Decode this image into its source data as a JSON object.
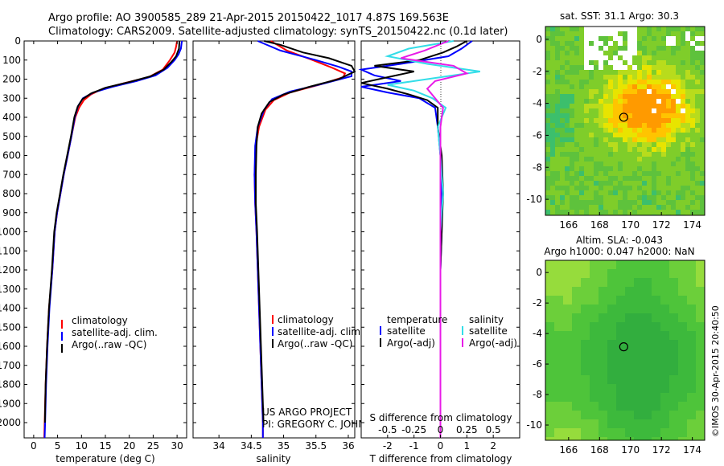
{
  "header": {
    "line1": "Argo profile: AO 3900585_289 21-Apr-2015 20150422_1017 4.87S 169.563E",
    "line2": "Climatology: CARS2009. Satellite-adjusted climatology: synTS_20150422.nc (0.1d later)"
  },
  "credits": {
    "project": "US ARGO PROJECT",
    "pi": "PI: GREGORY C. JOHNSON",
    "side_stamp": "©IMOS 30-Apr-2015 20:40:50"
  },
  "colors": {
    "climatology": "#ff0000",
    "satellite": "#0000ff",
    "argo": "#000000",
    "sal_satellite": "#33dde8",
    "sal_argo": "#e81be8"
  },
  "chart_data": [
    {
      "type": "line",
      "id": "temperature",
      "xlabel": "temperature (deg C)",
      "ylabel": "depth",
      "xlim": [
        -2,
        32
      ],
      "ylim": [
        2080,
        0
      ],
      "xticks": [
        0,
        5,
        10,
        15,
        20,
        25,
        30
      ],
      "yticks": [
        0,
        100,
        200,
        300,
        400,
        500,
        600,
        700,
        800,
        900,
        1000,
        1100,
        1200,
        1300,
        1400,
        1500,
        1600,
        1700,
        1800,
        1900,
        2000
      ],
      "legend": [
        "climatology",
        "satellite-adj. clim.",
        "Argo(..raw -QC)"
      ],
      "series": [
        {
          "name": "climatology",
          "color": "#ff0000",
          "points": [
            [
              30,
              0
            ],
            [
              29.8,
              30
            ],
            [
              29.5,
              60
            ],
            [
              28.5,
              100
            ],
            [
              27,
              150
            ],
            [
              24,
              190
            ],
            [
              19,
              220
            ],
            [
              14.5,
              250
            ],
            [
              12,
              280
            ],
            [
              10.5,
              310
            ],
            [
              9.5,
              350
            ],
            [
              8.7,
              400
            ],
            [
              7.9,
              500
            ],
            [
              7.1,
              600
            ],
            [
              6.3,
              700
            ],
            [
              5.6,
              800
            ],
            [
              4.9,
              900
            ],
            [
              4.4,
              1000
            ],
            [
              3.9,
              1200
            ],
            [
              3.2,
              1400
            ],
            [
              2.8,
              1600
            ],
            [
              2.5,
              1800
            ],
            [
              2.3,
              2000
            ],
            [
              2.2,
              2080
            ]
          ]
        },
        {
          "name": "satellite",
          "color": "#0000ff",
          "points": [
            [
              31,
              0
            ],
            [
              30.8,
              40
            ],
            [
              30.3,
              70
            ],
            [
              29.5,
              100
            ],
            [
              28,
              140
            ],
            [
              25.5,
              180
            ],
            [
              21.5,
              210
            ],
            [
              16.5,
              240
            ],
            [
              12.5,
              270
            ],
            [
              10.3,
              300
            ],
            [
              9.3,
              340
            ],
            [
              8.6,
              400
            ],
            [
              7.9,
              500
            ],
            [
              7.1,
              600
            ],
            [
              6.3,
              700
            ],
            [
              5.6,
              800
            ],
            [
              4.9,
              900
            ],
            [
              4.4,
              1000
            ],
            [
              3.9,
              1200
            ],
            [
              3.3,
              1400
            ],
            [
              2.9,
              1600
            ],
            [
              2.6,
              1800
            ],
            [
              2.4,
              2000
            ],
            [
              2.3,
              2080
            ]
          ]
        },
        {
          "name": "argo",
          "color": "#000000",
          "points": [
            [
              30.5,
              0
            ],
            [
              30.4,
              40
            ],
            [
              29.8,
              80
            ],
            [
              28.8,
              110
            ],
            [
              27.2,
              150
            ],
            [
              24.5,
              185
            ],
            [
              20,
              215
            ],
            [
              15,
              245
            ],
            [
              12,
              275
            ],
            [
              10.2,
              305
            ],
            [
              9.2,
              345
            ],
            [
              8.5,
              400
            ],
            [
              7.8,
              500
            ],
            [
              7,
              600
            ],
            [
              6.2,
              700
            ],
            [
              5.5,
              800
            ],
            [
              4.8,
              900
            ],
            [
              4.3,
              1000
            ],
            [
              3.8,
              1200
            ],
            [
              3.2,
              1400
            ],
            [
              2.8,
              1600
            ],
            [
              2.5,
              1800
            ],
            [
              2.35,
              2000
            ]
          ]
        }
      ]
    },
    {
      "type": "line",
      "id": "salinity",
      "xlabel": "salinity",
      "ylabel": "depth",
      "xlim": [
        33.6,
        36.1
      ],
      "ylim": [
        2080,
        0
      ],
      "xticks": [
        34,
        34.5,
        35,
        35.5,
        36
      ],
      "legend": [
        "climatology",
        "satellite-adj. clim.",
        "Argo(..raw -QC)"
      ],
      "series": [
        {
          "name": "climatology",
          "color": "#ff0000",
          "points": [
            [
              34.8,
              0
            ],
            [
              35.05,
              50
            ],
            [
              35.45,
              100
            ],
            [
              35.75,
              140
            ],
            [
              35.95,
              170
            ],
            [
              35.92,
              190
            ],
            [
              35.55,
              230
            ],
            [
              35.1,
              270
            ],
            [
              34.85,
              310
            ],
            [
              34.72,
              360
            ],
            [
              34.62,
              450
            ],
            [
              34.57,
              550
            ],
            [
              34.55,
              700
            ],
            [
              34.56,
              850
            ],
            [
              34.58,
              1000
            ],
            [
              34.6,
              1200
            ],
            [
              34.62,
              1400
            ],
            [
              34.64,
              1600
            ],
            [
              34.66,
              1800
            ],
            [
              34.68,
              2000
            ],
            [
              34.68,
              2080
            ]
          ]
        },
        {
          "name": "satellite",
          "color": "#0000ff",
          "points": [
            [
              34.6,
              0
            ],
            [
              34.95,
              50
            ],
            [
              35.5,
              100
            ],
            [
              35.85,
              135
            ],
            [
              36.05,
              160
            ],
            [
              36.05,
              185
            ],
            [
              35.6,
              225
            ],
            [
              35.1,
              265
            ],
            [
              34.82,
              305
            ],
            [
              34.7,
              360
            ],
            [
              34.6,
              450
            ],
            [
              34.56,
              550
            ],
            [
              34.55,
              700
            ],
            [
              34.56,
              850
            ],
            [
              34.58,
              1000
            ],
            [
              34.6,
              1200
            ],
            [
              34.62,
              1400
            ],
            [
              34.64,
              1600
            ],
            [
              34.66,
              1800
            ],
            [
              34.68,
              2000
            ],
            [
              34.68,
              2080
            ]
          ]
        },
        {
          "name": "argo",
          "color": "#000000",
          "points": [
            [
              34.7,
              0
            ],
            [
              34.95,
              20
            ],
            [
              35.3,
              60
            ],
            [
              35.7,
              90
            ],
            [
              36.05,
              130
            ],
            [
              36.1,
              160
            ],
            [
              35.85,
              200
            ],
            [
              35.4,
              240
            ],
            [
              35.0,
              280
            ],
            [
              34.78,
              320
            ],
            [
              34.66,
              380
            ],
            [
              34.6,
              450
            ],
            [
              34.58,
              550
            ],
            [
              34.57,
              700
            ],
            [
              34.57,
              850
            ],
            [
              34.59,
              1000
            ],
            [
              34.61,
              1200
            ],
            [
              34.63,
              1400
            ],
            [
              34.65,
              1600
            ],
            [
              34.67,
              1800
            ],
            [
              34.69,
              2000
            ]
          ]
        }
      ]
    },
    {
      "type": "line",
      "id": "difference",
      "xlabel": "T difference from climatology",
      "xlabel_top": "S difference from climatology",
      "xlim": [
        -3,
        3
      ],
      "ylim": [
        2080,
        0
      ],
      "xticks": [
        -2,
        -1,
        0,
        1,
        2
      ],
      "xticks_s": [
        "-0.5",
        "-0.25",
        "0",
        "0.25",
        "0.5"
      ],
      "legend_t_title": "temperature",
      "legend_s_title": "salinity",
      "legend": [
        "satellite",
        "Argo(-adj)",
        "satellite",
        "Argo(-adj)"
      ],
      "series": [
        {
          "name": "T satellite",
          "color": "#0000ff",
          "points": [
            [
              1.2,
              0
            ],
            [
              0.8,
              40
            ],
            [
              0.3,
              80
            ],
            [
              -1.5,
              120
            ],
            [
              -3,
              150
            ],
            [
              -2.5,
              180
            ],
            [
              -1.5,
              210
            ],
            [
              -3,
              240
            ],
            [
              -2,
              270
            ],
            [
              -0.8,
              300
            ],
            [
              -0.2,
              350
            ],
            [
              -0.1,
              450
            ],
            [
              0,
              600
            ],
            [
              0.05,
              800
            ],
            [
              0.05,
              1000
            ],
            [
              0,
              1200
            ],
            [
              0,
              1500
            ],
            [
              0,
              1800
            ],
            [
              0,
              2080
            ]
          ]
        },
        {
          "name": "T argo",
          "color": "#000000",
          "points": [
            [
              1,
              0
            ],
            [
              0.6,
              30
            ],
            [
              0.1,
              60
            ],
            [
              -0.8,
              100
            ],
            [
              -2.5,
              130
            ],
            [
              -1,
              160
            ],
            [
              -2,
              190
            ],
            [
              -3,
              220
            ],
            [
              -2,
              250
            ],
            [
              -1.2,
              280
            ],
            [
              -0.5,
              310
            ],
            [
              -0.1,
              350
            ],
            [
              -0.1,
              450
            ],
            [
              0.05,
              600
            ],
            [
              0.1,
              800
            ],
            [
              0.05,
              1000
            ],
            [
              0,
              1200
            ],
            [
              0,
              1500
            ],
            [
              0,
              1800
            ],
            [
              0,
              2080
            ]
          ]
        },
        {
          "name": "S satellite",
          "color": "#33dde8",
          "points": [
            [
              0.5,
              0
            ],
            [
              -1.2,
              40
            ],
            [
              -2,
              80
            ],
            [
              -0.5,
              120
            ],
            [
              1.5,
              160
            ],
            [
              -0.5,
              200
            ],
            [
              -2,
              230
            ],
            [
              -1,
              260
            ],
            [
              -0.3,
              300
            ],
            [
              0.2,
              350
            ],
            [
              -0.1,
              450
            ],
            [
              0,
              600
            ],
            [
              0.1,
              800
            ],
            [
              0,
              1000
            ],
            [
              0,
              1200
            ],
            [
              0,
              1500
            ],
            [
              0,
              1800
            ],
            [
              0,
              2080
            ]
          ]
        },
        {
          "name": "S argo",
          "color": "#e81be8",
          "points": [
            [
              0.3,
              0
            ],
            [
              -0.6,
              50
            ],
            [
              -1.5,
              90
            ],
            [
              0.5,
              130
            ],
            [
              1,
              170
            ],
            [
              -0.2,
              210
            ],
            [
              -0.5,
              250
            ],
            [
              -0.2,
              300
            ],
            [
              0.1,
              350
            ],
            [
              0,
              450
            ],
            [
              0,
              600
            ],
            [
              0,
              800
            ],
            [
              0,
              1000
            ],
            [
              0,
              1200
            ],
            [
              0,
              1500
            ],
            [
              0,
              1800
            ],
            [
              0,
              2080
            ]
          ]
        }
      ]
    },
    {
      "type": "heatmap",
      "id": "sst-map",
      "title": "sat. SST: 31.1  Argo: 30.3",
      "xlim": [
        164.5,
        174.8
      ],
      "ylim": [
        -11,
        0.8
      ],
      "xticks": [
        166,
        168,
        170,
        172,
        174
      ],
      "yticks": [
        0,
        -2,
        -4,
        -6,
        -8,
        -10
      ],
      "marker": {
        "lon": 169.563,
        "lat": -4.87
      }
    },
    {
      "type": "heatmap",
      "id": "sla-map",
      "title_line1": "Altim. SLA: -0.043",
      "title_line2": "Argo h1000: 0.047 h2000: NaN",
      "xlim": [
        164.5,
        174.8
      ],
      "ylim": [
        -11,
        0.8
      ],
      "xticks": [
        166,
        168,
        170,
        172,
        174
      ],
      "yticks": [
        0,
        -2,
        -4,
        -6,
        -8,
        -10
      ],
      "marker": {
        "lon": 169.563,
        "lat": -4.87
      }
    }
  ]
}
